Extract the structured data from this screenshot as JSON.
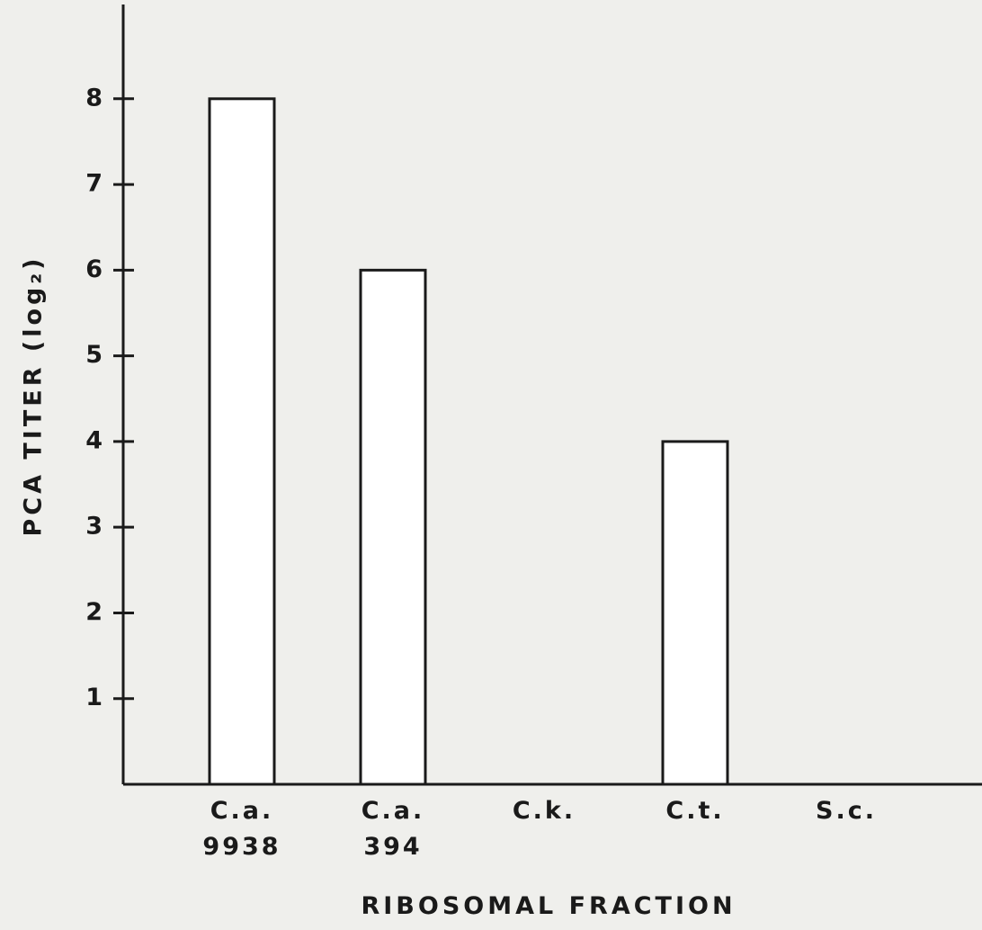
{
  "chart_data": {
    "type": "bar",
    "xlabel": "RIBOSOMAL FRACTION",
    "ylabel": "PCA TITER (log₂)",
    "categories": [
      "C.a.\n9938",
      "C.a.\n394",
      "C.k.",
      "C.t.",
      "S.c."
    ],
    "values": [
      8,
      6,
      0,
      4,
      0
    ],
    "color": "#ffffff",
    "ylim": [
      0,
      9.1
    ],
    "yticks": [
      1,
      2,
      3,
      4,
      5,
      6,
      7,
      8
    ],
    "grid": false
  }
}
